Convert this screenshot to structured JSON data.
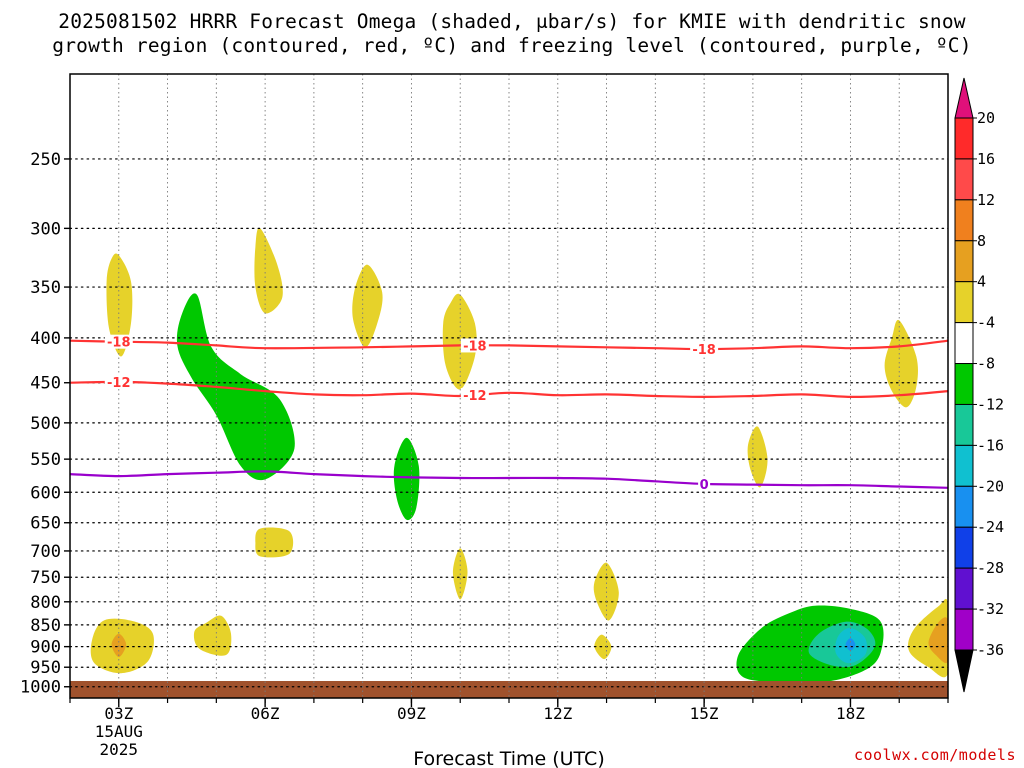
{
  "title": {
    "line1": "2025081502 HRRR Forecast Omega (shaded, μbar/s) for KMIE with dendritic snow",
    "line2": "growth region (contoured, red, ºC) and freezing level (contoured, purple, ºC)"
  },
  "credit": "coolwx.com/models",
  "chart_data": {
    "type": "time-height cross section",
    "title": "2025081502 HRRR Forecast Omega (shaded, μbar/s) for KMIE with dendritic snow growth region (contoured, red, ºC) and freezing level (contoured, purple, ºC)",
    "xlabel": "Forecast Time (UTC)",
    "ylabel": "",
    "x_range_hours": [
      2,
      20
    ],
    "y_range_hpa": [
      200,
      1030
    ],
    "y_scale": "log-pressure, inverted",
    "grid": true,
    "x_ticks": [
      {
        "hour": 3,
        "label": "03Z",
        "sub1": "15AUG",
        "sub2": "2025"
      },
      {
        "hour": 6,
        "label": "06Z"
      },
      {
        "hour": 9,
        "label": "09Z"
      },
      {
        "hour": 12,
        "label": "12Z"
      },
      {
        "hour": 15,
        "label": "15Z"
      },
      {
        "hour": 18,
        "label": "18Z"
      }
    ],
    "y_ticks": [
      250,
      300,
      350,
      400,
      450,
      500,
      550,
      600,
      650,
      700,
      750,
      800,
      850,
      900,
      950,
      1000
    ],
    "colorbar": {
      "levels": [
        20,
        16,
        12,
        8,
        4,
        -4,
        -8,
        -12,
        -16,
        -20,
        -24,
        -28,
        -32,
        -36
      ],
      "colors": [
        "#ff2a2a",
        "#ff4a4a",
        "#f0801e",
        "#e6a020",
        "#e6d22a",
        "#ffffff",
        "#00c800",
        "#18c898",
        "#10c0d0",
        "#1890f0",
        "#1040e8",
        "#6010d0",
        "#a000c8",
        "#a0a0a0"
      ],
      "upper_arrow_color": "#e0107a",
      "lower_arrow_color": "#000000"
    },
    "contours": [
      {
        "name": "-18",
        "color": "#ff3333",
        "label_hours": [
          3,
          10.3,
          15
        ],
        "points": [
          [
            2,
            403
          ],
          [
            3,
            404
          ],
          [
            4,
            405
          ],
          [
            5,
            408
          ],
          [
            6,
            411
          ],
          [
            8,
            410
          ],
          [
            9,
            409
          ],
          [
            10,
            408
          ],
          [
            11,
            408
          ],
          [
            12,
            409
          ],
          [
            13,
            410
          ],
          [
            14,
            411
          ],
          [
            15,
            412
          ],
          [
            16,
            411
          ],
          [
            17,
            409
          ],
          [
            18,
            411
          ],
          [
            19,
            409
          ],
          [
            20,
            403
          ]
        ]
      },
      {
        "name": "-12",
        "color": "#ff3333",
        "label_hours": [
          3,
          10.3
        ],
        "points": [
          [
            2,
            450
          ],
          [
            3,
            449
          ],
          [
            4,
            451
          ],
          [
            5,
            455
          ],
          [
            6,
            460
          ],
          [
            7,
            464
          ],
          [
            8,
            465
          ],
          [
            9,
            463
          ],
          [
            10,
            466
          ],
          [
            11,
            462
          ],
          [
            12,
            465
          ],
          [
            13,
            464
          ],
          [
            14,
            466
          ],
          [
            15,
            467
          ],
          [
            16,
            466
          ],
          [
            17,
            464
          ],
          [
            18,
            467
          ],
          [
            19,
            465
          ],
          [
            20,
            460
          ]
        ]
      },
      {
        "name": "0",
        "color": "#9900cc",
        "label_hours": [
          15
        ],
        "points": [
          [
            2,
            572
          ],
          [
            3,
            575
          ],
          [
            4,
            572
          ],
          [
            5,
            570
          ],
          [
            6,
            568
          ],
          [
            7,
            572
          ],
          [
            8,
            575
          ],
          [
            9,
            577
          ],
          [
            10,
            578
          ],
          [
            11,
            578
          ],
          [
            12,
            578
          ],
          [
            13,
            579
          ],
          [
            14,
            583
          ],
          [
            15,
            587
          ],
          [
            16,
            588
          ],
          [
            17,
            589
          ],
          [
            18,
            589
          ],
          [
            19,
            591
          ],
          [
            20,
            593
          ]
        ]
      }
    ],
    "omega_regions": [
      {
        "color": "#e6d22a",
        "points": [
          [
            3.0,
            322
          ],
          [
            3.25,
            345
          ],
          [
            3.25,
            385
          ],
          [
            3.05,
            420
          ],
          [
            2.8,
            390
          ],
          [
            2.75,
            345
          ],
          [
            2.85,
            325
          ]
        ]
      },
      {
        "color": "#e6d22a",
        "points": [
          [
            5.9,
            300
          ],
          [
            6.25,
            330
          ],
          [
            6.35,
            360
          ],
          [
            6.0,
            375
          ],
          [
            5.8,
            350
          ],
          [
            5.8,
            315
          ]
        ]
      },
      {
        "color": "#e6d22a",
        "points": [
          [
            8.1,
            330
          ],
          [
            8.4,
            355
          ],
          [
            8.3,
            385
          ],
          [
            8.05,
            410
          ],
          [
            7.8,
            380
          ],
          [
            7.85,
            350
          ]
        ]
      },
      {
        "color": "#e6d22a",
        "points": [
          [
            10.0,
            357
          ],
          [
            10.3,
            385
          ],
          [
            10.3,
            420
          ],
          [
            10.0,
            458
          ],
          [
            9.7,
            430
          ],
          [
            9.65,
            385
          ],
          [
            9.8,
            365
          ]
        ]
      },
      {
        "color": "#e6d22a",
        "points": [
          [
            19.0,
            382
          ],
          [
            19.35,
            420
          ],
          [
            19.35,
            455
          ],
          [
            19.15,
            480
          ],
          [
            18.85,
            460
          ],
          [
            18.7,
            430
          ],
          [
            18.85,
            400
          ]
        ]
      },
      {
        "color": "#e6d22a",
        "points": [
          [
            16.1,
            505
          ],
          [
            16.3,
            550
          ],
          [
            16.15,
            592
          ],
          [
            15.95,
            565
          ],
          [
            15.9,
            530
          ]
        ]
      },
      {
        "color": "#e6d22a",
        "points": [
          [
            5.9,
            660
          ],
          [
            6.5,
            665
          ],
          [
            6.5,
            705
          ],
          [
            5.9,
            710
          ],
          [
            5.8,
            685
          ]
        ]
      },
      {
        "color": "#e6d22a",
        "points": [
          [
            10.0,
            695
          ],
          [
            10.15,
            740
          ],
          [
            10.0,
            795
          ],
          [
            9.85,
            740
          ]
        ]
      },
      {
        "color": "#e6d22a",
        "points": [
          [
            13.0,
            722
          ],
          [
            13.25,
            780
          ],
          [
            13.05,
            840
          ],
          [
            12.8,
            800
          ],
          [
            12.75,
            760
          ]
        ]
      },
      {
        "color": "#e6d22a",
        "points": [
          [
            12.9,
            872
          ],
          [
            13.1,
            900
          ],
          [
            12.95,
            930
          ],
          [
            12.75,
            900
          ]
        ]
      },
      {
        "color": "#e6d22a",
        "points": [
          [
            2.7,
            840
          ],
          [
            3.3,
            842
          ],
          [
            3.7,
            870
          ],
          [
            3.6,
            935
          ],
          [
            3.05,
            965
          ],
          [
            2.5,
            940
          ],
          [
            2.45,
            885
          ]
        ]
      },
      {
        "color": "#e6d22a",
        "points": [
          [
            5.1,
            830
          ],
          [
            5.3,
            870
          ],
          [
            5.2,
            920
          ],
          [
            4.65,
            905
          ],
          [
            4.55,
            865
          ],
          [
            4.8,
            845
          ]
        ]
      },
      {
        "color": "#e6d22a",
        "points": [
          [
            19.8,
            810
          ],
          [
            20.0,
            805
          ],
          [
            20.0,
            965
          ],
          [
            19.6,
            950
          ],
          [
            19.2,
            910
          ],
          [
            19.3,
            860
          ]
        ]
      },
      {
        "color": "#e6a020",
        "points": [
          [
            3.0,
            870
          ],
          [
            3.15,
            895
          ],
          [
            3.0,
            925
          ],
          [
            2.85,
            895
          ]
        ]
      },
      {
        "color": "#e6a020",
        "points": [
          [
            19.8,
            845
          ],
          [
            20.0,
            840
          ],
          [
            20.0,
            935
          ],
          [
            19.75,
            920
          ],
          [
            19.6,
            890
          ]
        ]
      },
      {
        "color": "#00c800",
        "points": [
          [
            4.6,
            357
          ],
          [
            4.9,
            410
          ],
          [
            5.5,
            440
          ],
          [
            6.3,
            470
          ],
          [
            6.6,
            535
          ],
          [
            6.0,
            580
          ],
          [
            5.5,
            560
          ],
          [
            5.0,
            490
          ],
          [
            4.5,
            445
          ],
          [
            4.2,
            408
          ],
          [
            4.3,
            375
          ]
        ]
      },
      {
        "color": "#00c800",
        "points": [
          [
            8.9,
            520
          ],
          [
            9.15,
            560
          ],
          [
            9.1,
            625
          ],
          [
            8.9,
            645
          ],
          [
            8.7,
            610
          ],
          [
            8.65,
            560
          ]
        ]
      },
      {
        "color": "#00c800",
        "points": [
          [
            17.3,
            808
          ],
          [
            18.0,
            815
          ],
          [
            18.6,
            840
          ],
          [
            18.65,
            900
          ],
          [
            18.4,
            950
          ],
          [
            17.6,
            985
          ],
          [
            16.6,
            988
          ],
          [
            15.8,
            975
          ],
          [
            15.7,
            920
          ],
          [
            16.2,
            855
          ],
          [
            16.8,
            822
          ]
        ]
      },
      {
        "color": "#18c898",
        "points": [
          [
            17.9,
            843
          ],
          [
            18.35,
            860
          ],
          [
            18.5,
            900
          ],
          [
            18.1,
            945
          ],
          [
            17.6,
            945
          ],
          [
            17.15,
            915
          ],
          [
            17.35,
            870
          ]
        ]
      },
      {
        "color": "#10c0d0",
        "points": [
          [
            18.0,
            857
          ],
          [
            18.3,
            880
          ],
          [
            18.3,
            920
          ],
          [
            17.95,
            940
          ],
          [
            17.7,
            915
          ],
          [
            17.75,
            875
          ]
        ]
      },
      {
        "color": "#1890f0",
        "points": [
          [
            18.0,
            880
          ],
          [
            18.1,
            895
          ],
          [
            18.0,
            910
          ],
          [
            17.9,
            895
          ]
        ]
      }
    ],
    "terrain": {
      "color": "#a0522d",
      "top_hpa": 985
    }
  }
}
